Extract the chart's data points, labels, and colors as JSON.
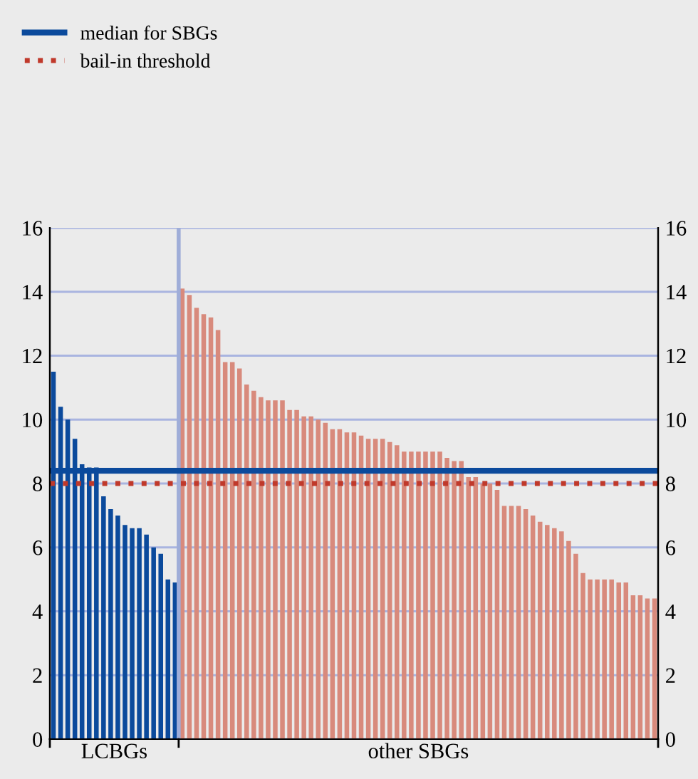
{
  "chart_data": {
    "type": "bar",
    "categories": [
      null,
      null,
      null,
      null,
      null,
      null,
      null,
      null,
      null,
      null,
      null,
      null,
      null,
      null,
      null,
      null,
      null,
      null,
      null,
      null,
      null,
      null,
      null,
      null,
      null,
      null,
      null,
      null,
      null,
      null,
      null,
      null,
      null,
      null,
      null,
      null,
      null,
      null,
      null,
      null,
      null,
      null,
      null,
      null,
      null,
      null,
      null,
      null,
      null,
      null,
      null,
      null,
      null,
      null,
      null,
      null,
      null,
      null,
      null,
      null,
      null,
      null,
      null,
      null,
      null,
      null,
      null,
      null,
      null,
      null,
      null,
      null,
      null,
      null,
      null,
      null,
      null,
      null,
      null,
      null,
      null,
      null,
      null,
      null,
      null
    ],
    "values": [
      11.5,
      10.4,
      10.0,
      9.4,
      8.6,
      8.5,
      8.5,
      7.6,
      7.2,
      7.0,
      6.7,
      6.6,
      6.6,
      6.4,
      6.0,
      5.8,
      5.0,
      4.9,
      14.1,
      13.9,
      13.5,
      13.3,
      13.2,
      12.8,
      11.8,
      11.8,
      11.6,
      11.1,
      10.9,
      10.7,
      10.6,
      10.6,
      10.6,
      10.3,
      10.3,
      10.1,
      10.1,
      10.0,
      9.9,
      9.7,
      9.7,
      9.6,
      9.6,
      9.5,
      9.4,
      9.4,
      9.4,
      9.3,
      9.2,
      9.0,
      9.0,
      9.0,
      9.0,
      9.0,
      9.0,
      8.8,
      8.7,
      8.7,
      8.2,
      8.2,
      8.0,
      8.0,
      7.8,
      7.3,
      7.3,
      7.3,
      7.2,
      7.0,
      6.8,
      6.7,
      6.6,
      6.5,
      6.2,
      5.8,
      5.2,
      5.0,
      5.0,
      5.0,
      5.0,
      4.9,
      4.9,
      4.5,
      4.5,
      4.4,
      4.4
    ],
    "colors": [
      "#0b4a9c",
      "#0b4a9c",
      "#0b4a9c",
      "#0b4a9c",
      "#0b4a9c",
      "#0b4a9c",
      "#0b4a9c",
      "#0b4a9c",
      "#0b4a9c",
      "#0b4a9c",
      "#0b4a9c",
      "#0b4a9c",
      "#0b4a9c",
      "#0b4a9c",
      "#0b4a9c",
      "#0b4a9c",
      "#0b4a9c",
      "#0b4a9c",
      "#d88a7c",
      "#d88a7c",
      "#d88a7c",
      "#d88a7c",
      "#d88a7c",
      "#d88a7c",
      "#d88a7c",
      "#d88a7c",
      "#d88a7c",
      "#d88a7c",
      "#d88a7c",
      "#d88a7c",
      "#d88a7c",
      "#d88a7c",
      "#d88a7c",
      "#d88a7c",
      "#d88a7c",
      "#d88a7c",
      "#d88a7c",
      "#d88a7c",
      "#d88a7c",
      "#d88a7c",
      "#d88a7c",
      "#d88a7c",
      "#d88a7c",
      "#d88a7c",
      "#d88a7c",
      "#d88a7c",
      "#d88a7c",
      "#d88a7c",
      "#d88a7c",
      "#d88a7c",
      "#d88a7c",
      "#d88a7c",
      "#d88a7c",
      "#d88a7c",
      "#d88a7c",
      "#d88a7c",
      "#d88a7c",
      "#d88a7c",
      "#d88a7c",
      "#d88a7c",
      "#d88a7c",
      "#d88a7c",
      "#d88a7c",
      "#d88a7c",
      "#d88a7c",
      "#d88a7c",
      "#d88a7c",
      "#d88a7c",
      "#d88a7c",
      "#d88a7c",
      "#d88a7c",
      "#d88a7c",
      "#d88a7c",
      "#d88a7c",
      "#d88a7c",
      "#d88a7c",
      "#d88a7c",
      "#d88a7c",
      "#d88a7c",
      "#d88a7c",
      "#d88a7c",
      "#d88a7c",
      "#d88a7c",
      "#d88a7c",
      "#d88a7c"
    ],
    "ylim": [
      0,
      16
    ],
    "yticks": [
      0,
      2,
      4,
      6,
      8,
      10,
      12,
      14,
      16
    ],
    "y2lim": [
      0,
      16
    ],
    "y2ticks": [
      0,
      2,
      4,
      6,
      8,
      10,
      12,
      14,
      16
    ],
    "grid": "y",
    "legend": "top left",
    "ref_lines": [
      {
        "axis": "y",
        "value": 8.4,
        "label": "median for SBGs",
        "color": "#0b4a9c",
        "line_style": "solid"
      },
      {
        "axis": "y",
        "value": 8.0,
        "label": "bail-in threshold",
        "color": "#c0392b",
        "line_style": "dotted"
      }
    ],
    "annotations": [
      "LCBGs",
      "other SBGs"
    ]
  }
}
